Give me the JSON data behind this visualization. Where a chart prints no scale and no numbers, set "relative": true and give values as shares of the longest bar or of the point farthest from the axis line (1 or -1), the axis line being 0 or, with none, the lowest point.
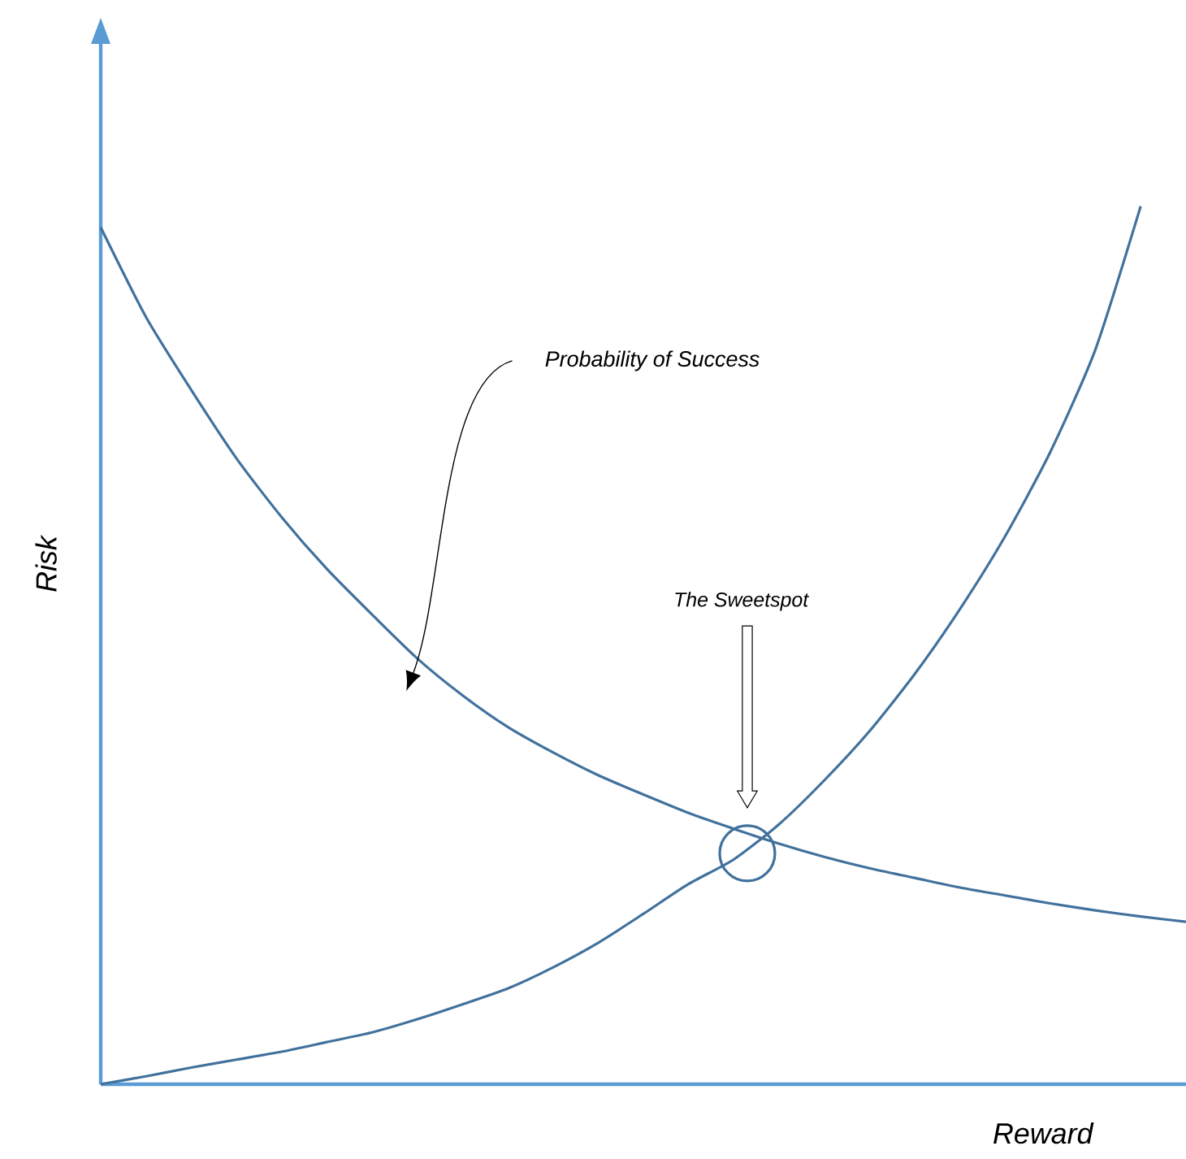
{
  "chart_data": {
    "type": "line",
    "relative": true,
    "xlabel": "Reward",
    "ylabel": "Risk",
    "categories": [
      null,
      null,
      null,
      null,
      null,
      null,
      null,
      null,
      null,
      null,
      null,
      null,
      null,
      null,
      null,
      null,
      null,
      null,
      null,
      null,
      null,
      null,
      null,
      null,
      null
    ],
    "series": [
      {
        "color": "#41719c",
        "values": [
          0.976,
          0.874,
          0.791,
          0.713,
          0.646,
          0.587,
          0.535,
          0.485,
          0.443,
          0.407,
          0.378,
          0.352,
          0.33,
          0.309,
          0.291,
          0.274,
          0.259,
          0.246,
          0.235,
          0.224,
          0.215,
          0.206,
          0.198,
          0.191,
          0.185
        ]
      },
      {
        "color": "#41719c",
        "values": [
          0,
          0.009,
          0.019,
          0.028,
          0.037,
          0.048,
          0.059,
          0.074,
          0.091,
          0.109,
          0.133,
          0.161,
          0.194,
          0.228,
          0.256,
          0.296,
          0.346,
          0.402,
          0.467,
          0.541,
          0.624,
          0.72,
          0.837,
          1,
          null
        ]
      }
    ],
    "annotations": [
      "Probability of Success",
      "The Sweetspot"
    ]
  }
}
